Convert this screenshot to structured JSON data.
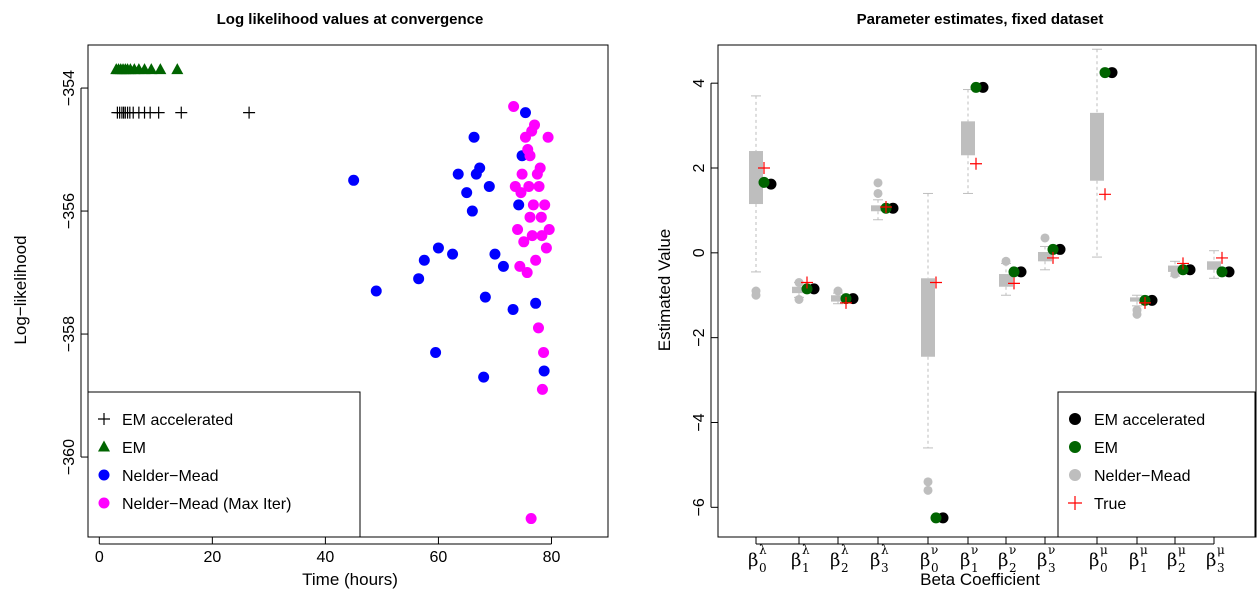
{
  "chart_data": [
    {
      "type": "scatter",
      "title": "Log likelihood values at convergence",
      "xlabel": "Time (hours)",
      "ylabel": "Log−likelihood",
      "xlim": [
        -2,
        90
      ],
      "ylim": [
        -361.3,
        -353.3
      ],
      "xticks": [
        0,
        20,
        40,
        60,
        80
      ],
      "yticks": [
        -354,
        -356,
        -358,
        -360
      ],
      "legend_position": "bottom-left",
      "series": [
        {
          "name": "EM accelerated",
          "marker": "plus",
          "color": "#000000",
          "points": [
            [
              3.2,
              -354.4
            ],
            [
              3.6,
              -354.4
            ],
            [
              4.0,
              -354.4
            ],
            [
              4.3,
              -354.4
            ],
            [
              4.6,
              -354.4
            ],
            [
              5.0,
              -354.4
            ],
            [
              5.4,
              -354.4
            ],
            [
              6.0,
              -354.4
            ],
            [
              7.0,
              -354.4
            ],
            [
              8.0,
              -354.4
            ],
            [
              9.0,
              -354.4
            ],
            [
              10.5,
              -354.4
            ],
            [
              14.5,
              -354.4
            ],
            [
              26.5,
              -354.4
            ]
          ]
        },
        {
          "name": "EM",
          "marker": "triangle",
          "color": "#006400",
          "points": [
            [
              3.0,
              -353.7
            ],
            [
              3.4,
              -353.7
            ],
            [
              3.8,
              -353.7
            ],
            [
              4.2,
              -353.7
            ],
            [
              4.6,
              -353.7
            ],
            [
              5.0,
              -353.7
            ],
            [
              5.5,
              -353.7
            ],
            [
              6.2,
              -353.7
            ],
            [
              7.0,
              -353.7
            ],
            [
              8.0,
              -353.7
            ],
            [
              9.2,
              -353.7
            ],
            [
              10.8,
              -353.7
            ],
            [
              13.8,
              -353.7
            ]
          ]
        },
        {
          "name": "Nelder−Mead",
          "marker": "circle",
          "color": "#0000ff",
          "points": [
            [
              45,
              -355.5
            ],
            [
              49,
              -357.3
            ],
            [
              56.5,
              -357.1
            ],
            [
              57.5,
              -356.8
            ],
            [
              59.5,
              -358.3
            ],
            [
              60,
              -356.6
            ],
            [
              62.5,
              -356.7
            ],
            [
              63.5,
              -355.4
            ],
            [
              65,
              -355.7
            ],
            [
              66,
              -356.0
            ],
            [
              66.3,
              -354.8
            ],
            [
              66.7,
              -355.4
            ],
            [
              67.3,
              -355.3
            ],
            [
              68,
              -358.7
            ],
            [
              68.3,
              -357.4
            ],
            [
              69,
              -355.6
            ],
            [
              70,
              -356.7
            ],
            [
              71.5,
              -356.9
            ],
            [
              73.2,
              -357.6
            ],
            [
              74.2,
              -355.9
            ],
            [
              74.8,
              -355.1
            ],
            [
              75.4,
              -354.4
            ],
            [
              77.2,
              -357.5
            ],
            [
              78.7,
              -358.6
            ]
          ]
        },
        {
          "name": "Nelder−Mead (Max Iter)",
          "marker": "circle",
          "color": "#ff00ff",
          "points": [
            [
              73.3,
              -354.3
            ],
            [
              73.6,
              -355.6
            ],
            [
              74,
              -356.3
            ],
            [
              74.4,
              -356.9
            ],
            [
              74.8,
              -355.4
            ],
            [
              75.1,
              -356.5
            ],
            [
              75.4,
              -354.8
            ],
            [
              75.7,
              -357.0
            ],
            [
              76,
              -355.6
            ],
            [
              76.2,
              -356.1
            ],
            [
              76.5,
              -354.7
            ],
            [
              76.8,
              -355.9
            ],
            [
              77,
              -354.6
            ],
            [
              77.2,
              -356.8
            ],
            [
              77.5,
              -355.4
            ],
            [
              77.7,
              -357.9
            ],
            [
              78,
              -355.3
            ],
            [
              78.2,
              -356.1
            ],
            [
              78.4,
              -358.9
            ],
            [
              78.6,
              -358.3
            ],
            [
              78.8,
              -355.9
            ],
            [
              79.1,
              -356.6
            ],
            [
              79.4,
              -354.8
            ],
            [
              79.6,
              -356.3
            ],
            [
              76.4,
              -361.0
            ],
            [
              76.2,
              -355.1
            ],
            [
              75.8,
              -355.0
            ],
            [
              77.8,
              -355.6
            ],
            [
              76.6,
              -356.4
            ],
            [
              74.6,
              -355.7
            ],
            [
              78.3,
              -356.4
            ]
          ]
        }
      ]
    },
    {
      "type": "box",
      "title": "Parameter estimates, fixed dataset",
      "xlabel": "Beta Coefficient",
      "ylabel": "Estimated Value",
      "ylim": [
        -6.7,
        4.9
      ],
      "yticks": [
        4,
        2,
        0,
        -2,
        -4,
        -6
      ],
      "legend_position": "bottom-right",
      "legend": [
        {
          "name": "EM accelerated",
          "color": "#000000",
          "marker": "circle"
        },
        {
          "name": "EM",
          "color": "#006400",
          "marker": "circle"
        },
        {
          "name": "Nelder−Mead",
          "color": "#bebebe",
          "marker": "circle"
        },
        {
          "name": "True",
          "color": "#ff0000",
          "marker": "plus"
        }
      ],
      "categories": [
        {
          "greek": "β",
          "sub": "0",
          "sup": "λ",
          "box": [
            1.15,
            1.7,
            2.4
          ],
          "whisker": [
            -0.45,
            3.7
          ],
          "outliers": [
            -0.9,
            -1.0
          ],
          "em_acc": 1.62,
          "em": 1.66,
          "true": 2.0
        },
        {
          "greek": "β",
          "sub": "1",
          "sup": "λ",
          "box": [
            -0.95,
            -0.88,
            -0.8
          ],
          "whisker": [
            -1.05,
            -0.7
          ],
          "outliers": [
            -0.7,
            -1.1
          ],
          "em_acc": -0.85,
          "em": -0.85,
          "true": -0.7
        },
        {
          "greek": "β",
          "sub": "2",
          "sup": "λ",
          "box": [
            -1.15,
            -1.08,
            -1.0
          ],
          "whisker": [
            -1.2,
            -0.95
          ],
          "outliers": [
            -0.9
          ],
          "em_acc": -1.08,
          "em": -1.08,
          "true": -1.18
        },
        {
          "greek": "β",
          "sub": "3",
          "sup": "λ",
          "box": [
            0.98,
            1.05,
            1.12
          ],
          "whisker": [
            0.78,
            1.25
          ],
          "outliers": [
            1.65,
            1.4
          ],
          "em_acc": 1.05,
          "em": 1.05,
          "true": 1.08
        },
        {
          "greek": "β",
          "sub": "0",
          "sup": "ν",
          "box": [
            -2.45,
            -1.9,
            -0.6
          ],
          "whisker": [
            -4.6,
            1.4
          ],
          "outliers": [
            -5.4,
            -5.6
          ],
          "em_acc": -6.25,
          "em": -6.25,
          "true": -0.7
        },
        {
          "greek": "β",
          "sub": "1",
          "sup": "ν",
          "box": [
            2.3,
            2.65,
            3.1
          ],
          "whisker": [
            1.4,
            3.85
          ],
          "outliers": [],
          "em_acc": 3.9,
          "em": 3.9,
          "true": 2.1
        },
        {
          "greek": "β",
          "sub": "2",
          "sup": "ν",
          "box": [
            -0.8,
            -0.65,
            -0.5
          ],
          "whisker": [
            -1.0,
            -0.25
          ],
          "outliers": [
            -0.2
          ],
          "em_acc": -0.45,
          "em": -0.45,
          "true": -0.72
        },
        {
          "greek": "β",
          "sub": "3",
          "sup": "ν",
          "box": [
            -0.2,
            -0.08,
            0.02
          ],
          "whisker": [
            -0.4,
            0.15
          ],
          "outliers": [
            0.35
          ],
          "em_acc": 0.08,
          "em": 0.08,
          "true": -0.12
        },
        {
          "greek": "β",
          "sub": "0",
          "sup": "μ",
          "box": [
            1.7,
            2.4,
            3.3
          ],
          "whisker": [
            -0.1,
            4.8
          ],
          "outliers": [],
          "em_acc": 4.25,
          "em": 4.25,
          "true": 1.38
        },
        {
          "greek": "β",
          "sub": "1",
          "sup": "μ",
          "box": [
            -1.15,
            -1.1,
            -1.05
          ],
          "whisker": [
            -1.25,
            -1.0
          ],
          "outliers": [
            -1.35,
            -1.45
          ],
          "em_acc": -1.12,
          "em": -1.12,
          "true": -1.18
        },
        {
          "greek": "β",
          "sub": "2",
          "sup": "μ",
          "box": [
            -0.45,
            -0.38,
            -0.3
          ],
          "whisker": [
            -0.55,
            -0.2
          ],
          "outliers": [
            -0.5
          ],
          "em_acc": -0.4,
          "em": -0.4,
          "true": -0.25
        },
        {
          "greek": "β",
          "sub": "3",
          "sup": "μ",
          "box": [
            -0.4,
            -0.3,
            -0.2
          ],
          "whisker": [
            -0.6,
            0.05
          ],
          "outliers": [],
          "em_acc": -0.45,
          "em": -0.45,
          "true": -0.12
        }
      ]
    }
  ]
}
